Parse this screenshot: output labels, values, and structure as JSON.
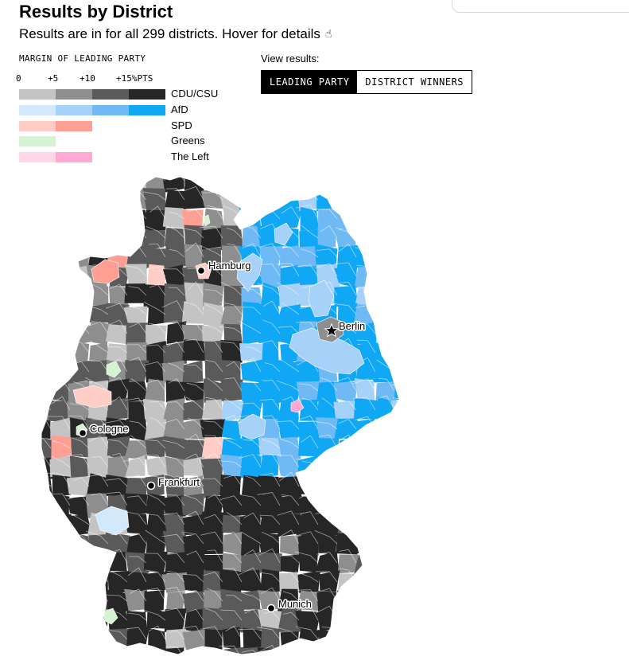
{
  "header": {
    "title": "Results by District",
    "subtitle": "Results are in for all 299 districts. Hover for details"
  },
  "legend": {
    "title": "MARGIN OF LEADING PARTY",
    "ticks": [
      "0",
      "+5",
      "+10",
      "+15%PTS"
    ],
    "parties": [
      {
        "name": "CDU/CSU",
        "colors": [
          "#c4c4c4",
          "#8e8e8e",
          "#5a5a5a",
          "#262626"
        ]
      },
      {
        "name": "AfD",
        "colors": [
          "#d3e8fb",
          "#a6d2f9",
          "#6fbaf5",
          "#10a7f4"
        ]
      },
      {
        "name": "SPD",
        "colors": [
          "#ffcdc5",
          "#ff9f94"
        ]
      },
      {
        "name": "Greens",
        "colors": [
          "#d4f3d0"
        ]
      },
      {
        "name": "The Left",
        "colors": [
          "#ffd6e8",
          "#ffa8d2"
        ]
      }
    ]
  },
  "view": {
    "label": "View results:",
    "options": [
      "LEADING PARTY",
      "DISTRICT WINNERS"
    ],
    "selected": "LEADING PARTY"
  },
  "map": {
    "cities": [
      {
        "name": "Hamburg",
        "marker": "dot"
      },
      {
        "name": "Berlin",
        "marker": "star"
      },
      {
        "name": "Cologne",
        "marker": "dot"
      },
      {
        "name": "Frankfurt",
        "marker": "dot"
      },
      {
        "name": "Munich",
        "marker": "dot"
      }
    ]
  }
}
